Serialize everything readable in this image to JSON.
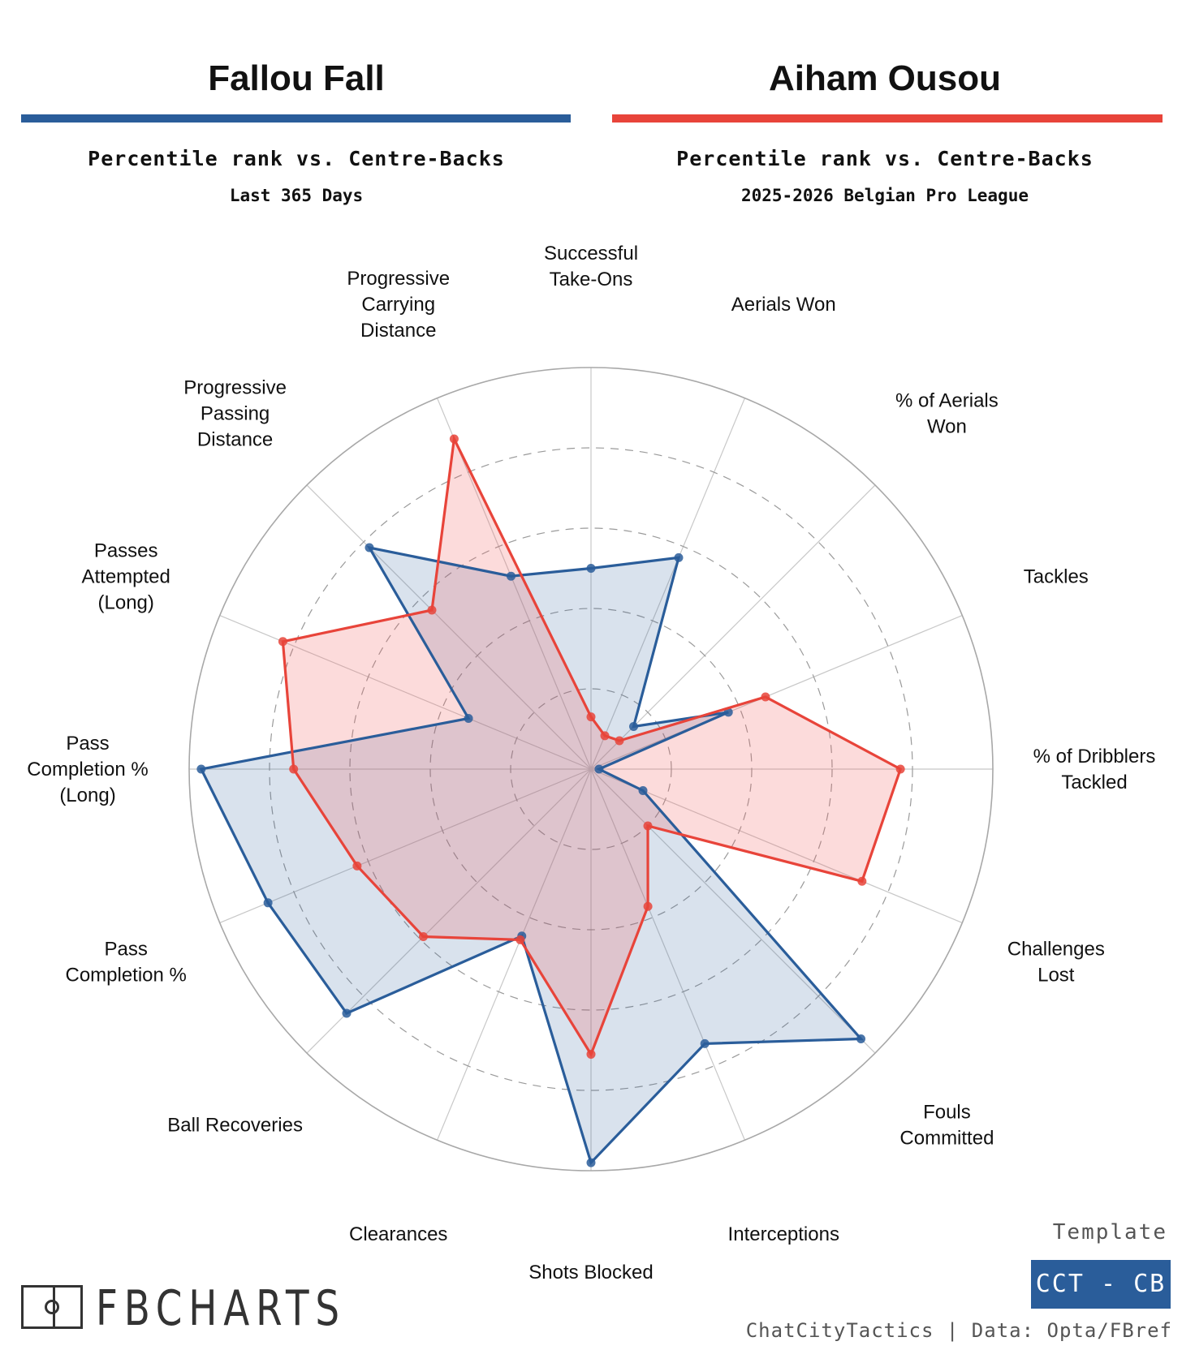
{
  "players": [
    {
      "name": "Fallou Fall",
      "color": "#2a5d9a",
      "subtitle": "Percentile rank vs. Centre-Backs",
      "context": "Last 365 Days"
    },
    {
      "name": "Aiham Ousou",
      "color": "#e8443a",
      "subtitle": "Percentile rank vs. Centre-Backs",
      "context": "2025-2026 Belgian Pro League"
    }
  ],
  "chart_data": {
    "type": "radar",
    "title": "Percentile rank vs. Centre-Backs",
    "range": [
      0,
      100
    ],
    "gridlines": [
      20,
      40,
      60,
      80,
      100
    ],
    "metrics": [
      "Successful Take-Ons",
      "Aerials Won",
      "% of Aerials Won",
      "Tackles",
      "% of Dribblers Tackled",
      "Challenges Lost",
      "Fouls Committed",
      "Interceptions",
      "Shots Blocked",
      "Clearances",
      "Ball Recoveries",
      "Pass Completion %",
      "Pass Completion % (Long)",
      "Passes Attempted (Long)",
      "Progressive Passing Distance",
      "Progressive Carrying Distance"
    ],
    "labels": [
      [
        "Successful",
        "Take-Ons"
      ],
      [
        "Aerials Won"
      ],
      [
        "% of Aerials",
        "Won"
      ],
      [
        "Tackles"
      ],
      [
        "% of Dribblers",
        "Tackled"
      ],
      [
        "Challenges",
        "Lost"
      ],
      [
        "Fouls",
        "Committed"
      ],
      [
        "Interceptions"
      ],
      [
        "Shots Blocked"
      ],
      [
        "Clearances"
      ],
      [
        "Ball Recoveries"
      ],
      [
        "Pass",
        "Completion %"
      ],
      [
        "Pass",
        "Completion %",
        "(Long)"
      ],
      [
        "Passes",
        "Attempted",
        "(Long)"
      ],
      [
        "Progressive",
        "Passing",
        "Distance"
      ],
      [
        "Progressive",
        "Carrying",
        "Distance"
      ]
    ],
    "series": [
      {
        "name": "Fallou Fall",
        "color": "#2a5d9a",
        "values": [
          50,
          57,
          15,
          37,
          2,
          14,
          95,
          74,
          98,
          45,
          86,
          87,
          97,
          33,
          78,
          52
        ]
      },
      {
        "name": "Aiham Ousou",
        "color": "#e8443a",
        "values": [
          13,
          9,
          10,
          47,
          77,
          73,
          20,
          37,
          71,
          46,
          59,
          63,
          74,
          83,
          56,
          89
        ]
      }
    ]
  },
  "footer": {
    "logo_text": "FBCHARTS",
    "template_label": "Template",
    "template_badge": "CCT - CB",
    "credit": "ChatCityTactics | Data: Opta/FBref"
  }
}
